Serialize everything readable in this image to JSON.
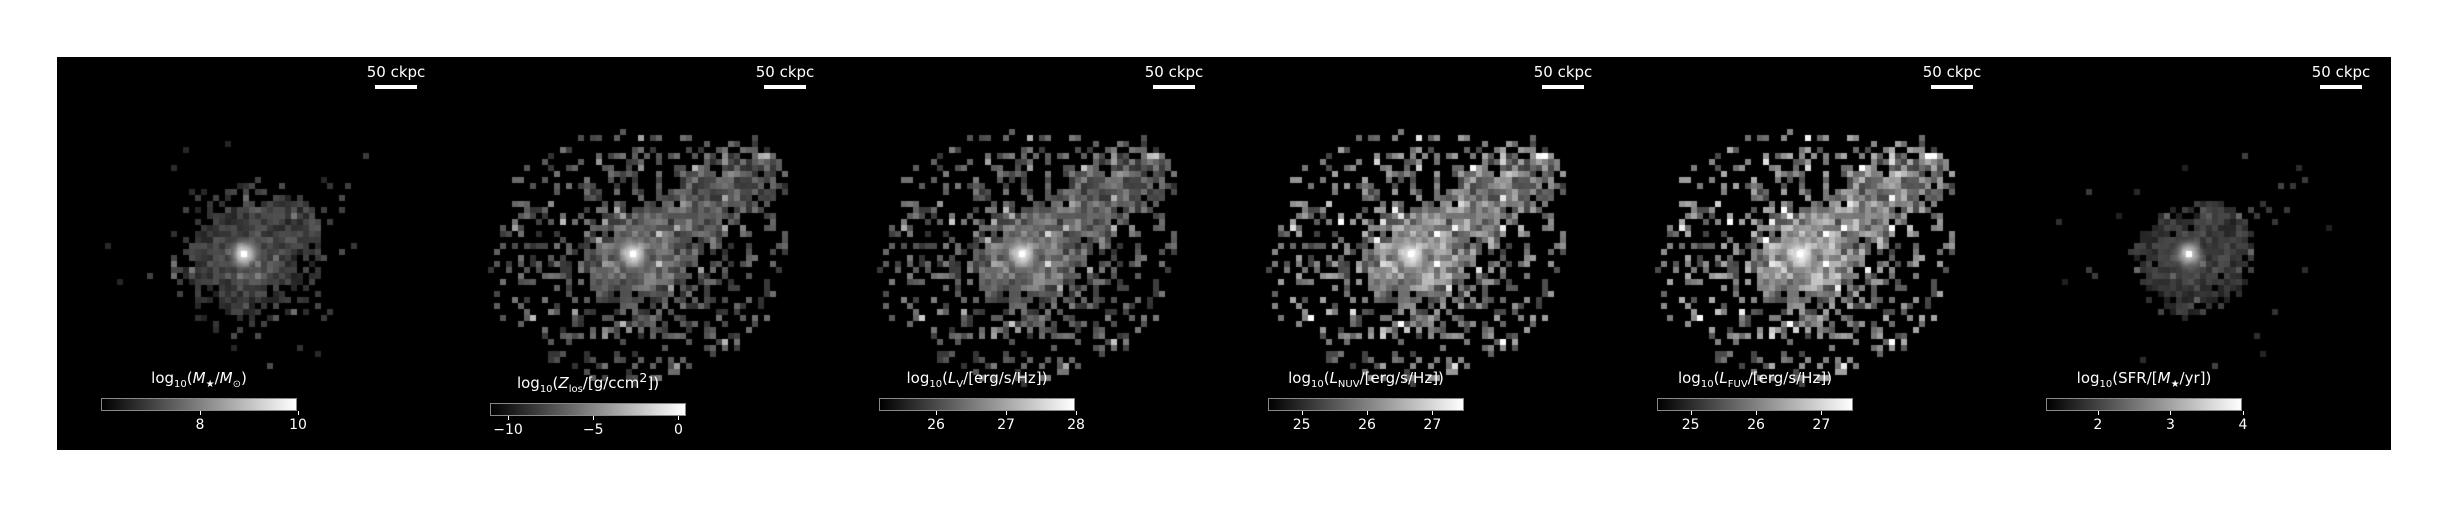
{
  "scale_bar_label": "50 ckpc",
  "colormap": "greyscale black-to-white",
  "panels": [
    {
      "id": "stellar-mass",
      "cbar_label_html": "log<sub>10</sub>(<i>M</i><sub>★</sub>/<i>M</i><sub>⊙</sub>)",
      "cbar_range": [
        6.0,
        10.0
      ],
      "ticks": [
        {
          "value": 8,
          "label": "8"
        },
        {
          "value": 10,
          "label": "10"
        }
      ],
      "spread": 0.45,
      "brightness": 0.35,
      "core": 1.0
    },
    {
      "id": "metallicity",
      "cbar_label_html": "log<sub>10</sub>(<i>Z</i><sub>los</sub>/[g/ccm<sup>2</sup>])",
      "cbar_range": [
        -11.0,
        0.5
      ],
      "ticks": [
        {
          "value": -10,
          "label": "−10"
        },
        {
          "value": -5,
          "label": "−5"
        },
        {
          "value": 0,
          "label": "0"
        }
      ],
      "spread": 1.0,
      "brightness": 0.55,
      "core": 1.0
    },
    {
      "id": "v-band-luminosity",
      "cbar_label_html": "log<sub>10</sub>(<i>L</i><sub>V</sub>/[erg/s/Hz])",
      "cbar_range": [
        25.2,
        28.0
      ],
      "ticks": [
        {
          "value": 26,
          "label": "26"
        },
        {
          "value": 27,
          "label": "27"
        },
        {
          "value": 28,
          "label": "28"
        }
      ],
      "spread": 1.0,
      "brightness": 0.6,
      "core": 1.0
    },
    {
      "id": "nuv-luminosity",
      "cbar_label_html": "log<sub>10</sub>(<i>L</i><sub>NUV</sub>/[erg/s/Hz])",
      "cbar_range": [
        24.5,
        27.5
      ],
      "ticks": [
        {
          "value": 25,
          "label": "25"
        },
        {
          "value": 26,
          "label": "26"
        },
        {
          "value": 27,
          "label": "27"
        }
      ],
      "spread": 1.0,
      "brightness": 0.8,
      "core": 1.0
    },
    {
      "id": "fuv-luminosity",
      "cbar_label_html": "log<sub>10</sub>(<i>L</i><sub>FUV</sub>/[erg/s/Hz])",
      "cbar_range": [
        24.5,
        27.5
      ],
      "ticks": [
        {
          "value": 25,
          "label": "25"
        },
        {
          "value": 26,
          "label": "26"
        },
        {
          "value": 27,
          "label": "27"
        }
      ],
      "spread": 1.0,
      "brightness": 0.85,
      "core": 1.0
    },
    {
      "id": "star-formation-rate",
      "cbar_label_html": "log<sub>10</sub>(SFR/[<i>M</i><sub>★</sub>/yr])",
      "cbar_range": [
        1.3,
        4.0
      ],
      "ticks": [
        {
          "value": 2,
          "label": "2"
        },
        {
          "value": 3,
          "label": "3"
        },
        {
          "value": 4,
          "label": "4"
        }
      ],
      "spread": 0.35,
      "brightness": 0.3,
      "core": 0.9
    }
  ]
}
